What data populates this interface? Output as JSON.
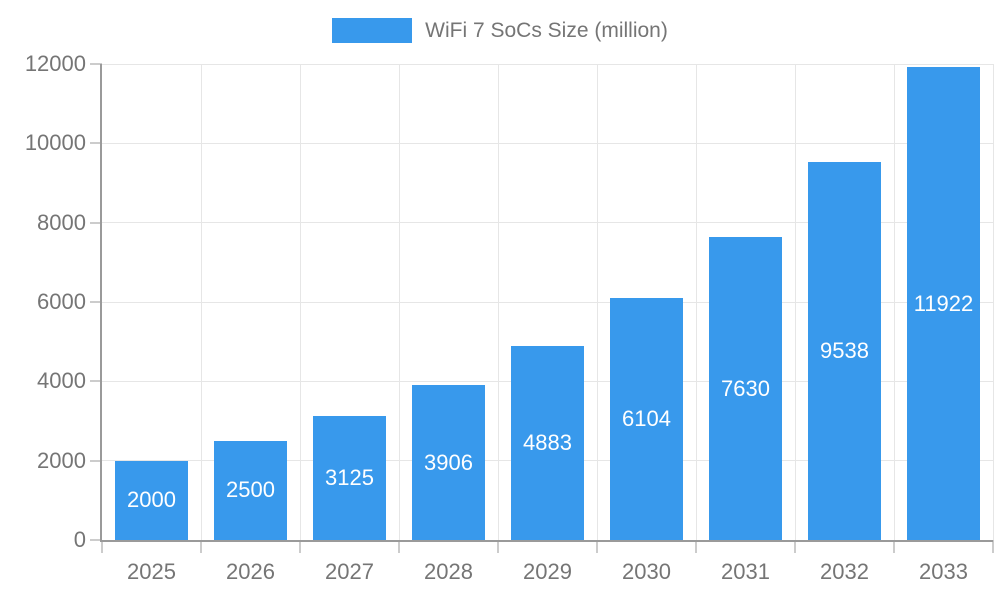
{
  "chart_data": {
    "type": "bar",
    "title": "WiFi 7 SoCs Size (million)",
    "legend": {
      "label": "WiFi 7 SoCs Size (million)",
      "position": "top-center"
    },
    "categories": [
      "2025",
      "2026",
      "2027",
      "2028",
      "2029",
      "2030",
      "2031",
      "2032",
      "2033"
    ],
    "values": [
      2000,
      2500,
      3125,
      3906,
      4883,
      6104,
      7630,
      9538,
      11922
    ],
    "value_labels_visible": true,
    "xlabel": "",
    "ylabel": "",
    "ylim": [
      0,
      12000
    ],
    "y_ticks": [
      0,
      2000,
      4000,
      6000,
      8000,
      10000,
      12000
    ],
    "grid": true,
    "colors": {
      "bar": "#3899EC",
      "axis_line": "#9A9A9A",
      "grid_line": "#E6E6E6",
      "tick": "#CCCCCC",
      "axis_text": "#757575",
      "value_text": "#FFFFFF",
      "background": "#FFFFFF"
    }
  }
}
